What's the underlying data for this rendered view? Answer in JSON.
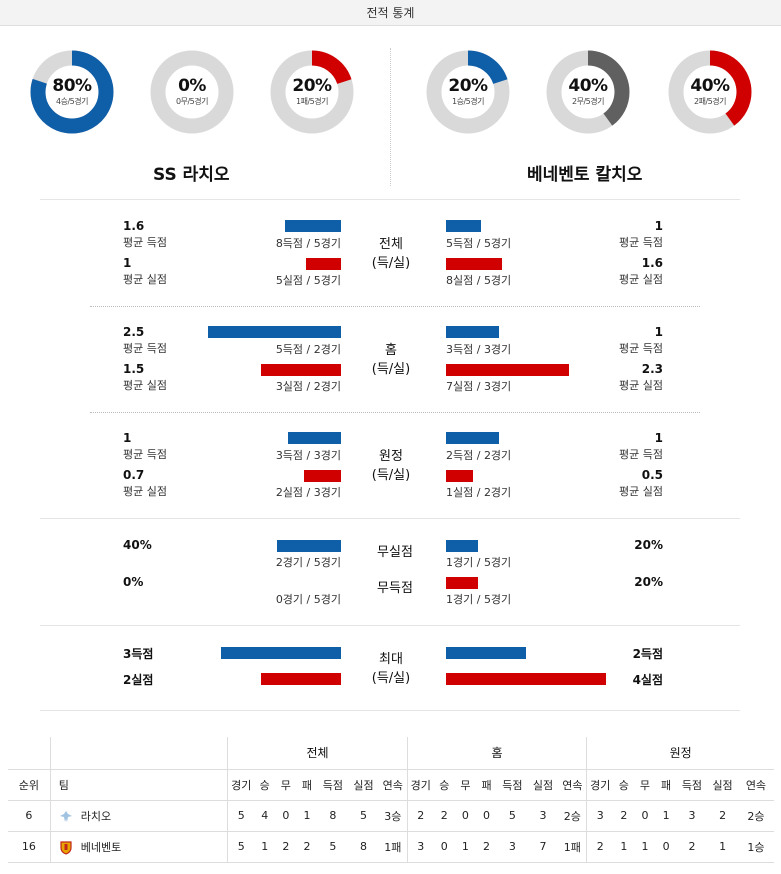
{
  "header": {
    "title": "전적 통계"
  },
  "colors": {
    "blue": "#0f5ea8",
    "red": "#d00000",
    "gray": "#606060",
    "track": "#d9d9d9"
  },
  "home_team": {
    "name": "SS 라치오",
    "donuts": [
      {
        "pct": "80%",
        "sub": "4승/5경기",
        "value": 0.8,
        "color": "blue"
      },
      {
        "pct": "0%",
        "sub": "0무/5경기",
        "value": 0.0,
        "color": "gray"
      },
      {
        "pct": "20%",
        "sub": "1패/5경기",
        "value": 0.2,
        "color": "red"
      }
    ]
  },
  "away_team": {
    "name": "베네벤토 칼치오",
    "donuts": [
      {
        "pct": "20%",
        "sub": "1승/5경기",
        "value": 0.2,
        "color": "blue"
      },
      {
        "pct": "40%",
        "sub": "2무/5경기",
        "value": 0.4,
        "color": "gray"
      },
      {
        "pct": "40%",
        "sub": "2패/5경기",
        "value": 0.4,
        "color": "red"
      }
    ]
  },
  "sections": [
    {
      "title1": "전체",
      "title2": "(득/실)",
      "home": [
        {
          "value": "1.6",
          "label": "평균 득점",
          "caption": "8득점 / 5경기",
          "bar": 1.6,
          "color": "blue"
        },
        {
          "value": "1",
          "label": "평균 실점",
          "caption": "5실점 / 5경기",
          "bar": 1.0,
          "color": "red"
        }
      ],
      "away": [
        {
          "value": "1",
          "label": "평균 득점",
          "caption": "5득점 / 5경기",
          "bar": 1.0,
          "color": "blue"
        },
        {
          "value": "1.6",
          "label": "평균 실점",
          "caption": "8실점 / 5경기",
          "bar": 1.6,
          "color": "red"
        }
      ]
    },
    {
      "title1": "홈",
      "title2": "(득/실)",
      "home": [
        {
          "value": "2.5",
          "label": "평균 득점",
          "caption": "5득점 / 2경기",
          "bar": 2.5,
          "color": "blue"
        },
        {
          "value": "1.5",
          "label": "평균 실점",
          "caption": "3실점 / 2경기",
          "bar": 1.5,
          "color": "red"
        }
      ],
      "away": [
        {
          "value": "1",
          "label": "평균 득점",
          "caption": "3득점 / 3경기",
          "bar": 1.0,
          "color": "blue"
        },
        {
          "value": "2.3",
          "label": "평균 실점",
          "caption": "7실점 / 3경기",
          "bar": 2.3,
          "color": "red"
        }
      ]
    },
    {
      "title1": "원정",
      "title2": "(득/실)",
      "home": [
        {
          "value": "1",
          "label": "평균 득점",
          "caption": "3득점 / 3경기",
          "bar": 1.0,
          "color": "blue"
        },
        {
          "value": "0.7",
          "label": "평균 실점",
          "caption": "2실점 / 3경기",
          "bar": 0.7,
          "color": "red"
        }
      ],
      "away": [
        {
          "value": "1",
          "label": "평균 득점",
          "caption": "2득점 / 2경기",
          "bar": 1.0,
          "color": "blue"
        },
        {
          "value": "0.5",
          "label": "평균 실점",
          "caption": "1실점 / 2경기",
          "bar": 0.5,
          "color": "red"
        }
      ]
    }
  ],
  "clean": {
    "rows": [
      {
        "title": "무실점",
        "home_value": "40%",
        "home_caption": "2경기 / 5경기",
        "home_bar": 0.4,
        "away_value": "20%",
        "away_caption": "1경기 / 5경기",
        "away_bar": 0.2,
        "color": "blue"
      },
      {
        "title": "무득점",
        "home_value": "0%",
        "home_caption": "0경기 / 5경기",
        "home_bar": 0.0,
        "away_value": "20%",
        "away_caption": "1경기 / 5경기",
        "away_bar": 0.2,
        "color": "red"
      }
    ]
  },
  "max": {
    "title1": "최대",
    "title2": "(득/실)",
    "home": [
      {
        "value": "3득점",
        "bar": 3,
        "color": "blue"
      },
      {
        "value": "2실점",
        "bar": 2,
        "color": "red"
      }
    ],
    "away": [
      {
        "value": "2득점",
        "bar": 2,
        "color": "blue"
      },
      {
        "value": "4실점",
        "bar": 4,
        "color": "red"
      }
    ]
  },
  "table": {
    "groups": [
      "전체",
      "홈",
      "원정"
    ],
    "col_rank": "순위",
    "col_team": "팀",
    "sub_cols": [
      "경기",
      "승",
      "무",
      "패",
      "득점",
      "실점",
      "연속"
    ],
    "rows": [
      {
        "rank": "6",
        "team": "라치오",
        "logo": "lazio-eagle-icon",
        "total": [
          "5",
          "4",
          "0",
          "1",
          "8",
          "5",
          "3승"
        ],
        "home": [
          "2",
          "2",
          "0",
          "0",
          "5",
          "3",
          "2승"
        ],
        "away": [
          "3",
          "2",
          "0",
          "1",
          "3",
          "2",
          "2승"
        ]
      },
      {
        "rank": "16",
        "team": "베네벤토",
        "logo": "benevento-shield-icon",
        "total": [
          "5",
          "1",
          "2",
          "2",
          "5",
          "8",
          "1패"
        ],
        "home": [
          "3",
          "0",
          "1",
          "2",
          "3",
          "7",
          "1패"
        ],
        "away": [
          "2",
          "1",
          "1",
          "0",
          "2",
          "1",
          "1승"
        ]
      }
    ]
  }
}
